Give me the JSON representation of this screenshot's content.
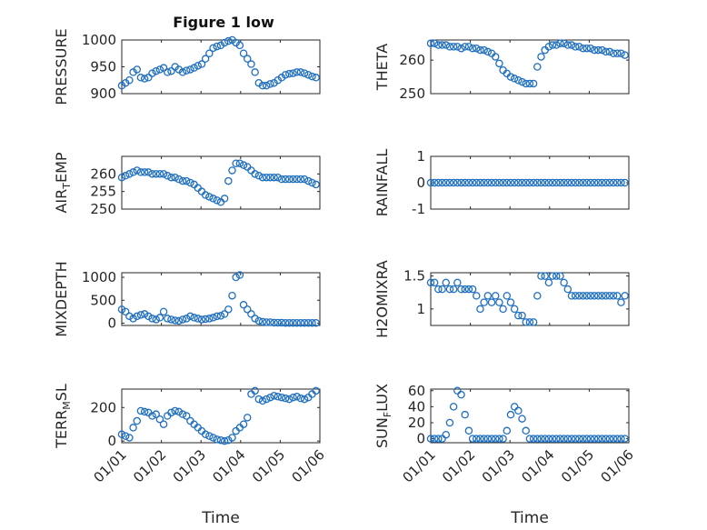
{
  "figure": {
    "title": "Figure 1 low"
  },
  "colors": {
    "marker": "#1f6fbf",
    "axis": "#262626"
  },
  "chart_data": [
    {
      "type": "scatter",
      "ylabel": "PRESSURE",
      "ylim": [
        900,
        1000
      ],
      "yticks": [
        900,
        950,
        1000
      ],
      "ytick_labels": [
        "900",
        "950",
        "1000"
      ],
      "xlim": [
        0,
        5
      ],
      "xticks": [
        0,
        1,
        2,
        3,
        4,
        5
      ],
      "xtick_labels": [
        "01/01",
        "01/02",
        "01/03",
        "01/04",
        "01/05",
        "01/06"
      ],
      "xlabel": "",
      "x_range": [
        0.0,
        4.9
      ],
      "y": [
        915,
        920,
        925,
        940,
        945,
        930,
        928,
        930,
        938,
        942,
        945,
        948,
        940,
        942,
        950,
        945,
        940,
        943,
        945,
        948,
        952,
        955,
        965,
        975,
        985,
        988,
        990,
        995,
        998,
        1000,
        995,
        990,
        975,
        965,
        955,
        940,
        920,
        915,
        915,
        918,
        920,
        925,
        930,
        935,
        937,
        938,
        940,
        940,
        938,
        935,
        932,
        930
      ]
    },
    {
      "type": "scatter",
      "ylabel": "THETA",
      "ylim": [
        250,
        266
      ],
      "yticks": [
        250,
        260
      ],
      "ytick_labels": [
        "250",
        "260"
      ],
      "xlim": [
        0,
        5
      ],
      "xticks": [
        0,
        1,
        2,
        3,
        4,
        5
      ],
      "xtick_labels": [
        "01/01",
        "01/02",
        "01/03",
        "01/04",
        "01/05",
        "01/06"
      ],
      "xlabel": "",
      "x_range": [
        0.0,
        4.9
      ],
      "y": [
        265,
        265,
        264.5,
        264.5,
        264.5,
        264,
        264,
        264,
        263.5,
        264,
        264,
        263.5,
        263.5,
        263,
        263,
        262.5,
        262,
        261,
        259,
        257,
        256,
        255,
        254.5,
        254,
        253.5,
        253,
        253,
        253,
        258,
        261,
        263,
        264,
        264.5,
        264.5,
        265,
        265,
        264.5,
        264.5,
        264,
        264,
        263.5,
        263.5,
        263.5,
        263,
        263,
        263,
        262.5,
        262.5,
        262,
        262,
        262,
        261.5
      ]
    },
    {
      "type": "scatter",
      "ylabel": "AIR_TEMP",
      "ylim": [
        250,
        265
      ],
      "yticks": [
        250,
        255,
        260
      ],
      "ytick_labels": [
        "250",
        "255",
        "260"
      ],
      "xlim": [
        0,
        5
      ],
      "xticks": [
        0,
        1,
        2,
        3,
        4,
        5
      ],
      "xtick_labels": [
        "01/01",
        "01/02",
        "01/03",
        "01/04",
        "01/05",
        "01/06"
      ],
      "xlabel": "",
      "x_range": [
        0.0,
        4.9
      ],
      "y": [
        259,
        259.5,
        260,
        260.5,
        261,
        260.5,
        260.5,
        260.5,
        260,
        260,
        260,
        260,
        259.5,
        259,
        259,
        258.5,
        258,
        258,
        257.5,
        257,
        256,
        255,
        254,
        253.5,
        253,
        252.5,
        252,
        253,
        258,
        261,
        263,
        263,
        262.5,
        262,
        261,
        260,
        259.5,
        259,
        259,
        259,
        259,
        259,
        258.5,
        258.5,
        258.5,
        258.5,
        258.5,
        258.5,
        258.5,
        258,
        257.5,
        257
      ]
    },
    {
      "type": "scatter",
      "ylabel": "RAINFALL",
      "ylim": [
        -1,
        1
      ],
      "yticks": [
        -1,
        0,
        1
      ],
      "ytick_labels": [
        "-1",
        "0",
        "1"
      ],
      "xlim": [
        0,
        5
      ],
      "xticks": [
        0,
        1,
        2,
        3,
        4,
        5
      ],
      "xtick_labels": [
        "01/01",
        "01/02",
        "01/03",
        "01/04",
        "01/05",
        "01/06"
      ],
      "xlabel": "",
      "x_range": [
        0.0,
        4.9
      ],
      "y": [
        0,
        0,
        0,
        0,
        0,
        0,
        0,
        0,
        0,
        0,
        0,
        0,
        0,
        0,
        0,
        0,
        0,
        0,
        0,
        0,
        0,
        0,
        0,
        0,
        0,
        0,
        0,
        0,
        0,
        0,
        0,
        0,
        0,
        0,
        0,
        0,
        0,
        0,
        0,
        0,
        0,
        0,
        0,
        0,
        0,
        0,
        0,
        0,
        0,
        0,
        0,
        0
      ]
    },
    {
      "type": "scatter",
      "ylabel": "MIXDEPTH",
      "ylim": [
        -50,
        1100
      ],
      "yticks": [
        0,
        500,
        1000
      ],
      "ytick_labels": [
        "0",
        "500",
        "1000"
      ],
      "xlim": [
        0,
        5
      ],
      "xticks": [
        0,
        1,
        2,
        3,
        4,
        5
      ],
      "xtick_labels": [
        "01/01",
        "01/02",
        "01/03",
        "01/04",
        "01/05",
        "01/06"
      ],
      "xlabel": "",
      "x_range": [
        0.0,
        4.9
      ],
      "y": [
        300,
        250,
        150,
        100,
        150,
        180,
        200,
        150,
        100,
        80,
        120,
        250,
        100,
        80,
        60,
        50,
        80,
        100,
        150,
        120,
        100,
        80,
        90,
        100,
        120,
        150,
        160,
        200,
        300,
        600,
        1000,
        1050,
        400,
        300,
        200,
        100,
        50,
        30,
        20,
        20,
        10,
        10,
        10,
        5,
        5,
        5,
        5,
        5,
        5,
        5,
        5,
        5
      ]
    },
    {
      "type": "scatter",
      "ylabel": "H2OMIXRA",
      "ylim": [
        0.75,
        1.55
      ],
      "yticks": [
        1,
        1.5
      ],
      "ytick_labels": [
        "1",
        "1.5"
      ],
      "xlim": [
        0,
        5
      ],
      "xticks": [
        0,
        1,
        2,
        3,
        4,
        5
      ],
      "xtick_labels": [
        "01/01",
        "01/02",
        "01/03",
        "01/04",
        "01/05",
        "01/06"
      ],
      "xlabel": "",
      "x_range": [
        0.0,
        4.9
      ],
      "y": [
        1.4,
        1.4,
        1.3,
        1.3,
        1.4,
        1.3,
        1.3,
        1.4,
        1.3,
        1.3,
        1.3,
        1.3,
        1.2,
        1.0,
        1.1,
        1.2,
        1.1,
        1.2,
        1.1,
        1.0,
        1.2,
        1.1,
        1.0,
        0.9,
        0.9,
        0.8,
        0.8,
        0.8,
        1.2,
        1.5,
        1.5,
        1.4,
        1.5,
        1.5,
        1.5,
        1.4,
        1.3,
        1.2,
        1.2,
        1.2,
        1.2,
        1.2,
        1.2,
        1.2,
        1.2,
        1.2,
        1.2,
        1.2,
        1.2,
        1.2,
        1.1,
        1.2
      ]
    },
    {
      "type": "scatter",
      "ylabel": "TERR_MSL",
      "ylim": [
        -10,
        310
      ],
      "yticks": [
        0,
        200
      ],
      "ytick_labels": [
        "0",
        "200"
      ],
      "xlim": [
        0,
        5
      ],
      "xticks": [
        0,
        1,
        2,
        3,
        4,
        5
      ],
      "xtick_labels": [
        "01/01",
        "01/02",
        "01/03",
        "01/04",
        "01/05",
        "01/06"
      ],
      "xlabel": "Time",
      "x_range": [
        0.0,
        4.9
      ],
      "y": [
        40,
        30,
        20,
        80,
        120,
        180,
        175,
        170,
        150,
        160,
        130,
        100,
        150,
        170,
        180,
        175,
        160,
        150,
        120,
        100,
        80,
        60,
        40,
        30,
        20,
        10,
        5,
        0,
        5,
        20,
        60,
        80,
        100,
        140,
        280,
        300,
        250,
        240,
        250,
        260,
        270,
        265,
        260,
        255,
        250,
        260,
        265,
        255,
        250,
        260,
        280,
        300
      ]
    },
    {
      "type": "scatter",
      "ylabel": "SUN_FLUX",
      "ylim": [
        -5,
        62
      ],
      "yticks": [
        0,
        20,
        40,
        60
      ],
      "ytick_labels": [
        "0",
        "20",
        "40",
        "60"
      ],
      "xlim": [
        0,
        5
      ],
      "xticks": [
        0,
        1,
        2,
        3,
        4,
        5
      ],
      "xtick_labels": [
        "01/01",
        "01/02",
        "01/03",
        "01/04",
        "01/05",
        "01/06"
      ],
      "xlabel": "Time",
      "x_range": [
        0.0,
        4.9
      ],
      "y": [
        0,
        0,
        0,
        0,
        5,
        20,
        40,
        60,
        55,
        30,
        10,
        0,
        0,
        0,
        0,
        0,
        0,
        0,
        0,
        0,
        10,
        30,
        40,
        35,
        25,
        10,
        0,
        0,
        0,
        0,
        0,
        0,
        0,
        0,
        0,
        0,
        0,
        0,
        0,
        0,
        0,
        0,
        0,
        0,
        0,
        0,
        0,
        0,
        0,
        0,
        0,
        0
      ]
    }
  ]
}
